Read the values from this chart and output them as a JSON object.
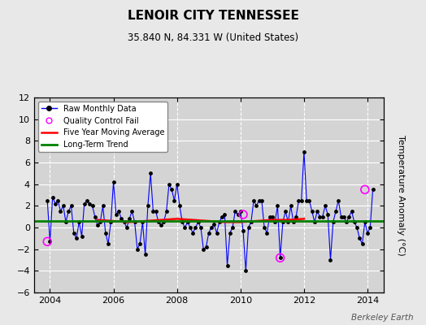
{
  "title": "LENOIR CITY TENNESSEE",
  "subtitle": "35.840 N, 84.331 W (United States)",
  "ylabel": "Temperature Anomaly (°C)",
  "watermark": "Berkeley Earth",
  "ylim": [
    -6,
    12
  ],
  "yticks": [
    -6,
    -4,
    -2,
    0,
    2,
    4,
    6,
    8,
    10,
    12
  ],
  "xlim": [
    2003.5,
    2014.5
  ],
  "xticks": [
    2004,
    2006,
    2008,
    2010,
    2012,
    2014
  ],
  "bg_color": "#e8e8e8",
  "plot_bg_color": "#d4d4d4",
  "grid_color": "#ffffff",
  "long_term_trend_value": 0.6,
  "raw_data": [
    2003.917,
    2.5,
    2004.0,
    -1.3,
    2004.083,
    2.8,
    2004.167,
    2.2,
    2004.25,
    2.5,
    2004.333,
    1.5,
    2004.417,
    2.0,
    2004.5,
    0.5,
    2004.583,
    1.5,
    2004.667,
    2.0,
    2004.75,
    -0.5,
    2004.833,
    -1.0,
    2004.917,
    0.5,
    2005.0,
    -0.8,
    2005.083,
    2.2,
    2005.167,
    2.5,
    2005.25,
    2.2,
    2005.333,
    2.0,
    2005.417,
    1.0,
    2005.5,
    0.2,
    2005.583,
    0.5,
    2005.667,
    2.0,
    2005.75,
    -0.5,
    2005.833,
    -1.5,
    2005.917,
    0.5,
    2006.0,
    4.2,
    2006.083,
    1.2,
    2006.167,
    1.5,
    2006.25,
    0.8,
    2006.333,
    0.5,
    2006.417,
    0.0,
    2006.5,
    0.8,
    2006.583,
    1.5,
    2006.667,
    0.5,
    2006.75,
    -2.0,
    2006.833,
    -1.5,
    2006.917,
    0.5,
    2007.0,
    -2.5,
    2007.083,
    2.0,
    2007.167,
    5.0,
    2007.25,
    1.5,
    2007.333,
    1.5,
    2007.417,
    0.5,
    2007.5,
    0.2,
    2007.583,
    0.5,
    2007.667,
    1.5,
    2007.75,
    4.0,
    2007.833,
    3.5,
    2007.917,
    2.5,
    2008.0,
    4.0,
    2008.083,
    2.0,
    2008.167,
    0.5,
    2008.25,
    0.0,
    2008.333,
    0.5,
    2008.417,
    0.0,
    2008.5,
    -0.5,
    2008.583,
    0.0,
    2008.667,
    0.5,
    2008.75,
    0.0,
    2008.833,
    -2.0,
    2008.917,
    -1.8,
    2009.0,
    -0.5,
    2009.083,
    0.0,
    2009.167,
    0.3,
    2009.25,
    -0.5,
    2009.333,
    0.5,
    2009.417,
    1.0,
    2009.5,
    1.2,
    2009.583,
    -3.5,
    2009.667,
    -0.5,
    2009.75,
    0.0,
    2009.833,
    1.5,
    2009.917,
    1.2,
    2010.0,
    1.5,
    2010.083,
    -0.3,
    2010.167,
    -4.0,
    2010.25,
    0.0,
    2010.333,
    0.5,
    2010.417,
    2.5,
    2010.5,
    2.0,
    2010.583,
    2.5,
    2010.667,
    2.5,
    2010.75,
    0.0,
    2010.833,
    -0.5,
    2010.917,
    1.0,
    2011.0,
    1.0,
    2011.083,
    0.5,
    2011.167,
    2.0,
    2011.25,
    -2.8,
    2011.333,
    0.5,
    2011.417,
    1.5,
    2011.5,
    0.5,
    2011.583,
    2.0,
    2011.667,
    0.5,
    2011.75,
    1.0,
    2011.833,
    2.5,
    2011.917,
    2.5,
    2012.0,
    7.0,
    2012.083,
    2.5,
    2012.167,
    2.5,
    2012.25,
    1.5,
    2012.333,
    0.5,
    2012.417,
    1.5,
    2012.5,
    1.0,
    2012.583,
    1.0,
    2012.667,
    2.0,
    2012.75,
    1.2,
    2012.833,
    -3.0,
    2012.917,
    0.5,
    2013.0,
    1.5,
    2013.083,
    2.5,
    2013.167,
    1.0,
    2013.25,
    1.0,
    2013.333,
    0.5,
    2013.417,
    1.0,
    2013.5,
    1.5,
    2013.583,
    0.5,
    2013.667,
    0.0,
    2013.75,
    -1.0,
    2013.833,
    -1.5,
    2013.917,
    0.5,
    2014.0,
    -0.5,
    2014.083,
    0.0,
    2014.167,
    3.5
  ],
  "qc_fail_points": [
    [
      2003.917,
      -1.3
    ],
    [
      2010.083,
      1.2
    ],
    [
      2011.25,
      -2.8
    ],
    [
      2013.917,
      3.5
    ]
  ],
  "moving_avg": [
    2005.5,
    0.7,
    2006.0,
    0.6,
    2006.5,
    0.5,
    2007.0,
    0.6,
    2007.5,
    0.7,
    2008.0,
    0.8,
    2008.5,
    0.7,
    2009.0,
    0.6,
    2009.5,
    0.5,
    2010.0,
    0.5,
    2010.5,
    0.6,
    2011.0,
    0.7,
    2011.5,
    0.7,
    2012.0,
    0.8
  ]
}
